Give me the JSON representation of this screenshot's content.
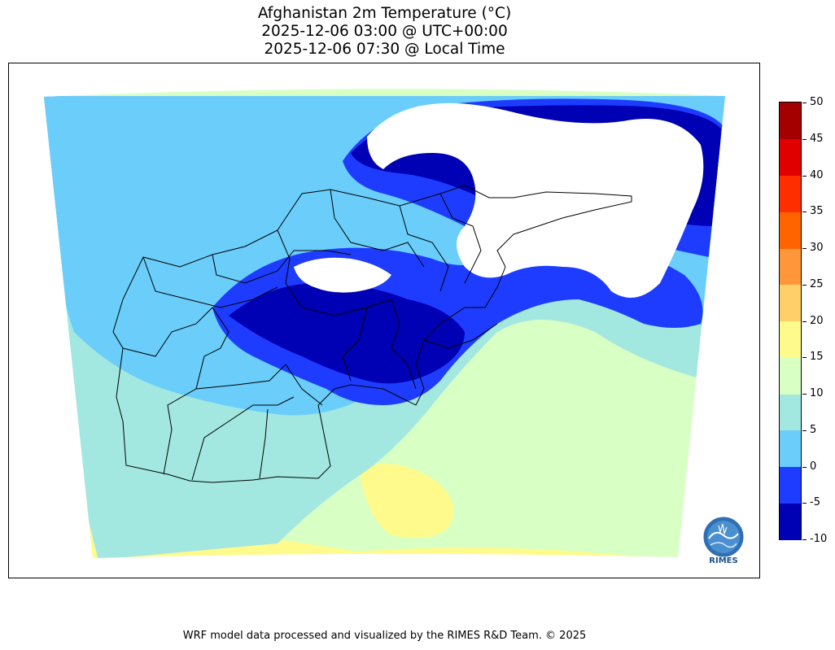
{
  "title": {
    "line1": "Afghanistan 2m Temperature (°C)",
    "line2": "2025-12-06 03:00 @ UTC+00:00",
    "line3": "2025-12-06 07:30 @ Local Time"
  },
  "colorbar": {
    "unit": "°C",
    "ticks": [
      "-10",
      "-5",
      "0",
      "5",
      "10",
      "15",
      "20",
      "25",
      "30",
      "35",
      "40",
      "45",
      "50"
    ],
    "levels": [
      {
        "from": -10,
        "to": -5,
        "color": "#0000b4"
      },
      {
        "from": -5,
        "to": 0,
        "color": "#1e3cff"
      },
      {
        "from": 0,
        "to": 5,
        "color": "#6acdfa"
      },
      {
        "from": 5,
        "to": 10,
        "color": "#a2e8e0"
      },
      {
        "from": 10,
        "to": 15,
        "color": "#d8ffc4"
      },
      {
        "from": 15,
        "to": 20,
        "color": "#fffa8c"
      },
      {
        "from": 20,
        "to": 25,
        "color": "#ffcf6a"
      },
      {
        "from": 25,
        "to": 30,
        "color": "#ff963a"
      },
      {
        "from": 30,
        "to": 35,
        "color": "#ff6400"
      },
      {
        "from": 35,
        "to": 40,
        "color": "#ff2e00"
      },
      {
        "from": 40,
        "to": 45,
        "color": "#e10000"
      },
      {
        "from": 45,
        "to": 50,
        "color": "#a50000"
      }
    ],
    "missing_color": "#ffffff"
  },
  "logo": {
    "text": "RIMES",
    "icon": "rimes-globe-icon"
  },
  "footer": "WRF model data processed and visualized by the RIMES R&D Team. © 2025",
  "colors": {
    "frame": "#000000",
    "border": "#000000"
  }
}
